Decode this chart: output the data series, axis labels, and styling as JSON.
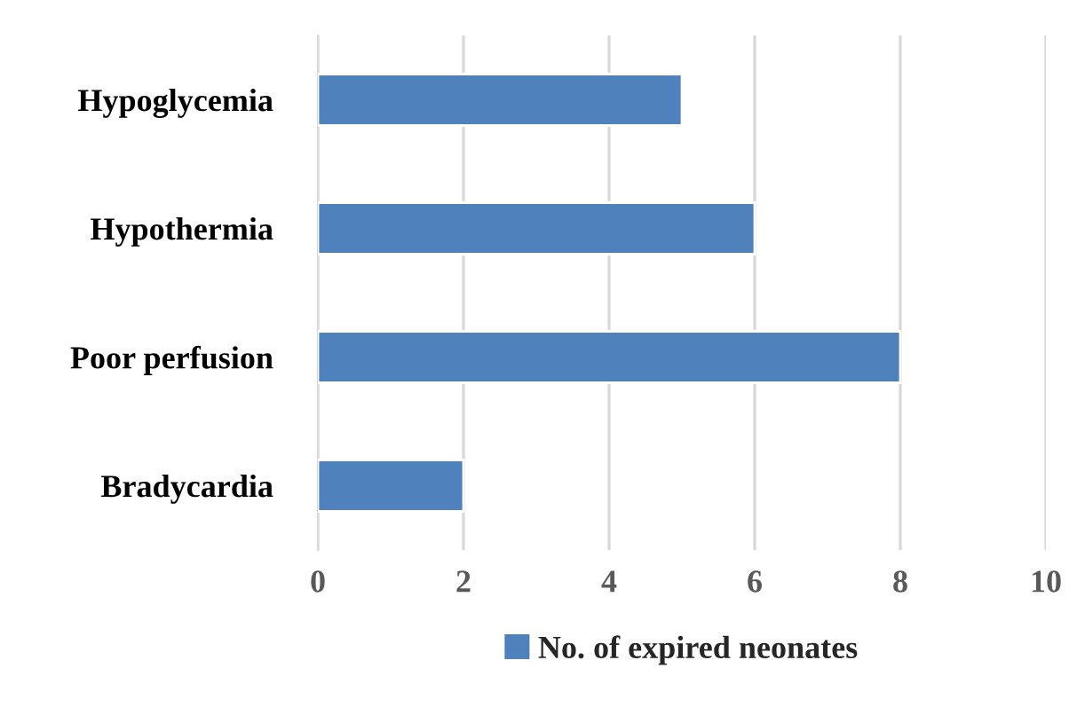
{
  "chart_data": {
    "type": "bar",
    "orientation": "horizontal",
    "categories": [
      "Hypoglycemia",
      "Hypothermia",
      "Poor perfusion",
      "Bradycardia"
    ],
    "series": [
      {
        "name": "No. of expired neonates",
        "color": "#4f81bd",
        "values": [
          5,
          6,
          8,
          2
        ]
      }
    ],
    "xlim": [
      0,
      10
    ],
    "xticks": [
      0,
      2,
      4,
      6,
      8,
      10
    ],
    "grid": "x",
    "legend": "bottom"
  }
}
